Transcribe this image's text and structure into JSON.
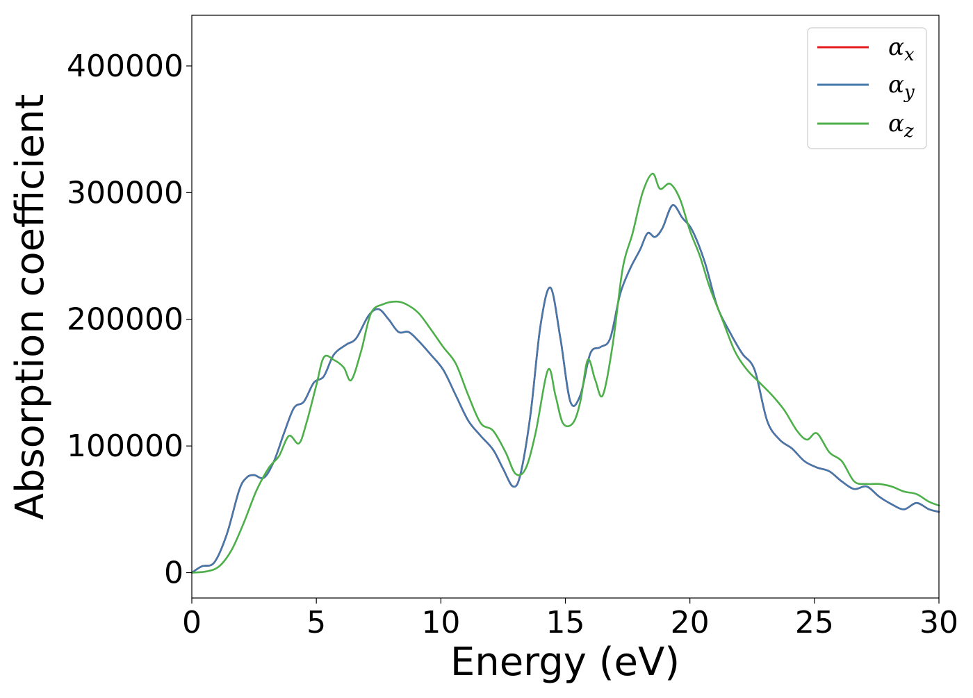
{
  "chart_data": {
    "type": "line",
    "title": "",
    "xlabel": "Energy (eV)",
    "ylabel": "Absorption coefficient",
    "xlim": [
      0,
      30
    ],
    "ylim": [
      -20000,
      440000
    ],
    "xticks": [
      0,
      5,
      10,
      15,
      20,
      25,
      30
    ],
    "xtick_labels": [
      "0",
      "5",
      "10",
      "15",
      "20",
      "25",
      "30"
    ],
    "yticks": [
      0,
      100000,
      200000,
      300000,
      400000
    ],
    "ytick_labels": [
      "0",
      "100000",
      "200000",
      "300000",
      "400000"
    ],
    "grid": false,
    "legend_position": "top-right",
    "series": [
      {
        "name": "α_x",
        "color": "#e41a1c",
        "x": [
          0,
          0.4,
          0.9,
          1.4,
          1.9,
          2.2,
          2.5,
          2.9,
          3.3,
          3.7,
          4.1,
          4.5,
          4.9,
          5.3,
          5.7,
          6.2,
          6.6,
          7.1,
          7.5,
          7.9,
          8.3,
          8.7,
          9.1,
          9.6,
          10.1,
          10.6,
          11.1,
          11.6,
          12.1,
          12.5,
          12.9,
          13.2,
          13.6,
          14.0,
          14.4,
          14.8,
          15.2,
          15.6,
          16.0,
          16.4,
          16.8,
          17.2,
          17.6,
          18.0,
          18.3,
          18.6,
          18.9,
          19.3,
          19.7,
          20.1,
          20.6,
          21.1,
          21.6,
          22.1,
          22.6,
          23.1,
          23.6,
          24.1,
          24.6,
          25.1,
          25.6,
          26.1,
          26.6,
          27.1,
          27.6,
          28.1,
          28.6,
          29.1,
          29.6,
          30
        ],
        "y": [
          0,
          5000,
          8000,
          30000,
          65000,
          75000,
          77000,
          75000,
          88000,
          110000,
          130000,
          135000,
          150000,
          155000,
          172000,
          180000,
          185000,
          203000,
          208000,
          200000,
          190000,
          190000,
          183000,
          172000,
          160000,
          140000,
          120000,
          108000,
          97000,
          82000,
          68000,
          78000,
          125000,
          195000,
          225000,
          185000,
          135000,
          140000,
          173000,
          178000,
          185000,
          220000,
          240000,
          255000,
          268000,
          265000,
          272000,
          290000,
          280000,
          270000,
          245000,
          210000,
          190000,
          173000,
          160000,
          120000,
          105000,
          98000,
          88000,
          83000,
          80000,
          72000,
          66000,
          68000,
          60000,
          54000,
          50000,
          55000,
          50000,
          48000
        ]
      },
      {
        "name": "α_y",
        "color": "#4477aa",
        "x": [
          0,
          0.4,
          0.9,
          1.4,
          1.9,
          2.2,
          2.5,
          2.9,
          3.3,
          3.7,
          4.1,
          4.5,
          4.9,
          5.3,
          5.7,
          6.2,
          6.6,
          7.1,
          7.5,
          7.9,
          8.3,
          8.7,
          9.1,
          9.6,
          10.1,
          10.6,
          11.1,
          11.6,
          12.1,
          12.5,
          12.9,
          13.2,
          13.6,
          14.0,
          14.4,
          14.8,
          15.2,
          15.6,
          16.0,
          16.4,
          16.8,
          17.2,
          17.6,
          18.0,
          18.3,
          18.6,
          18.9,
          19.3,
          19.7,
          20.1,
          20.6,
          21.1,
          21.6,
          22.1,
          22.6,
          23.1,
          23.6,
          24.1,
          24.6,
          25.1,
          25.6,
          26.1,
          26.6,
          27.1,
          27.6,
          28.1,
          28.6,
          29.1,
          29.6,
          30
        ],
        "y": [
          0,
          5000,
          8000,
          30000,
          65000,
          75000,
          77000,
          75000,
          88000,
          110000,
          130000,
          135000,
          150000,
          155000,
          172000,
          180000,
          185000,
          203000,
          208000,
          200000,
          190000,
          190000,
          183000,
          172000,
          160000,
          140000,
          120000,
          108000,
          97000,
          82000,
          68000,
          78000,
          125000,
          195000,
          225000,
          185000,
          135000,
          140000,
          173000,
          178000,
          185000,
          220000,
          240000,
          255000,
          268000,
          265000,
          272000,
          290000,
          280000,
          270000,
          245000,
          210000,
          190000,
          173000,
          160000,
          120000,
          105000,
          98000,
          88000,
          83000,
          80000,
          72000,
          66000,
          68000,
          60000,
          54000,
          50000,
          55000,
          50000,
          48000
        ]
      },
      {
        "name": "α_z",
        "color": "#4daf4a",
        "x": [
          0,
          0.6,
          1.1,
          1.6,
          2.1,
          2.6,
          3.1,
          3.5,
          3.9,
          4.3,
          4.6,
          5.0,
          5.3,
          5.7,
          6.1,
          6.4,
          6.8,
          7.2,
          7.7,
          8.2,
          8.6,
          9.1,
          9.6,
          10.1,
          10.6,
          11.1,
          11.6,
          12.1,
          12.6,
          13.0,
          13.4,
          13.8,
          14.3,
          14.6,
          14.9,
          15.3,
          15.6,
          15.9,
          16.2,
          16.5,
          16.9,
          17.3,
          17.7,
          18.1,
          18.5,
          18.8,
          19.2,
          19.6,
          20.0,
          20.4,
          20.8,
          21.3,
          21.8,
          22.3,
          22.8,
          23.3,
          23.8,
          24.3,
          24.7,
          25.1,
          25.6,
          26.1,
          26.6,
          27.1,
          27.6,
          28.1,
          28.6,
          29.1,
          29.6,
          30
        ],
        "y": [
          0,
          1000,
          5000,
          18000,
          40000,
          65000,
          83000,
          92000,
          108000,
          102000,
          118000,
          148000,
          170000,
          168000,
          162000,
          152000,
          175000,
          205000,
          212000,
          214000,
          212000,
          205000,
          192000,
          178000,
          165000,
          140000,
          118000,
          112000,
          95000,
          78000,
          82000,
          110000,
          160000,
          140000,
          118000,
          118000,
          135000,
          168000,
          152000,
          140000,
          180000,
          240000,
          268000,
          300000,
          315000,
          303000,
          307000,
          295000,
          270000,
          250000,
          225000,
          200000,
          175000,
          160000,
          150000,
          140000,
          128000,
          112000,
          105000,
          110000,
          95000,
          88000,
          72000,
          70000,
          70000,
          68000,
          64000,
          62000,
          56000,
          53000
        ]
      }
    ]
  }
}
